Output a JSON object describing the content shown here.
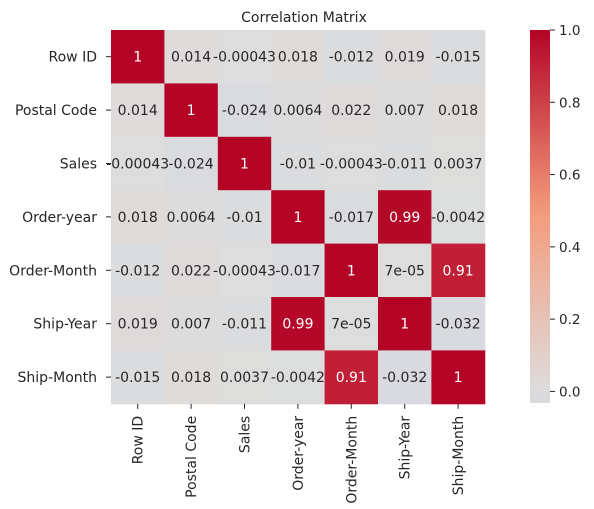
{
  "chart_data": {
    "type": "heatmap",
    "title": "Correlation Matrix",
    "xlabel": "",
    "ylabel": "",
    "row_labels": [
      "Row ID",
      "Postal Code",
      "Sales",
      "Order-year",
      "Order-Month",
      "Ship-Year",
      "Ship-Month"
    ],
    "col_labels": [
      "Row ID",
      "Postal Code",
      "Sales",
      "Order-year",
      "Order-Month",
      "Ship-Year",
      "Ship-Month"
    ],
    "values": [
      [
        1,
        0.014,
        -0.00043,
        0.018,
        -0.012,
        0.019,
        -0.015
      ],
      [
        0.014,
        1,
        -0.024,
        0.0064,
        0.022,
        0.007,
        0.018
      ],
      [
        -0.00043,
        -0.024,
        1,
        -0.01,
        -0.00043,
        -0.011,
        0.0037
      ],
      [
        0.018,
        0.0064,
        -0.01,
        1,
        -0.017,
        0.99,
        -0.0042
      ],
      [
        -0.012,
        0.022,
        -0.00043,
        -0.017,
        1,
        7e-05,
        0.91
      ],
      [
        0.019,
        0.007,
        -0.011,
        0.99,
        7e-05,
        1,
        -0.032
      ],
      [
        -0.015,
        0.018,
        0.0037,
        -0.0042,
        0.91,
        -0.032,
        1
      ]
    ],
    "cell_text": [
      [
        "1",
        "0.014",
        "-0.00043",
        "0.018",
        "-0.012",
        "0.019",
        "-0.015"
      ],
      [
        "0.014",
        "1",
        "-0.024",
        "0.0064",
        "0.022",
        "0.007",
        "0.018"
      ],
      [
        "-0.00043",
        "-0.024",
        "1",
        "-0.01",
        "-0.00043",
        "-0.011",
        "0.0037"
      ],
      [
        "0.018",
        "0.0064",
        "-0.01",
        "1",
        "-0.017",
        "0.99",
        "-0.0042"
      ],
      [
        "-0.012",
        "0.022",
        "-0.00043",
        "-0.017",
        "1",
        "7e-05",
        "0.91"
      ],
      [
        "0.019",
        "0.007",
        "-0.011",
        "0.99",
        "7e-05",
        "1",
        "-0.032"
      ],
      [
        "-0.015",
        "0.018",
        "0.0037",
        "-0.0042",
        "0.91",
        "-0.032",
        "1"
      ]
    ],
    "colormap": "coolwarm",
    "color_range": [
      -0.032,
      1
    ],
    "colorbar": {
      "ticks": [
        0.0,
        0.2,
        0.4,
        0.6,
        0.8,
        1.0
      ],
      "tick_labels": [
        "0.0",
        "0.2",
        "0.4",
        "0.6",
        "0.8",
        "1.0"
      ],
      "placement": "right"
    }
  }
}
